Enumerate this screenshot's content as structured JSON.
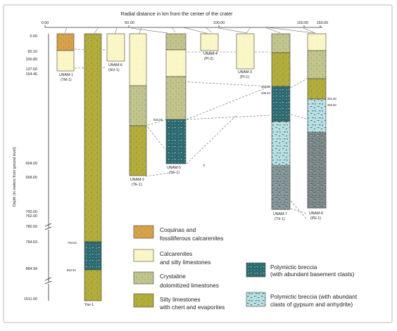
{
  "title": "Radial distance in km from the center of the crater",
  "y_axis_label": "Depth (in meters from ground level)",
  "x_ticks": [
    "0.00",
    "50.00",
    "100.00",
    "150.00",
    "160.00"
  ],
  "depth_ticks": [
    "0.00",
    "60.10",
    "100.80",
    "137.60",
    "154.45",
    "604.00",
    "658.00",
    "700.00",
    "762.00",
    "780.00",
    "794.63",
    "884.94",
    "1511.00"
  ],
  "inline_depths": {
    "yax_top_breccia": "794.63",
    "yax_base_breccia": "884.94",
    "se1_top_breccia": "503.06",
    "yx_top_breccia": "332.00",
    "yx_breccia_marker": "348.40",
    "ps_gypsum": "381.60",
    "ps_breccia": "392.60",
    "question": "?"
  },
  "well_names": {
    "tm1": [
      "UNAM-1",
      "(TM-1)"
    ],
    "hu1": [
      "UNAM-6",
      "(HU-1)"
    ],
    "tk1_top": [
      "UNAM-4",
      "(PI-2)"
    ],
    "pi1": [
      "UNAM-3",
      "(PI-1)"
    ],
    "te1": [
      "UNAM-2",
      "(TE-1)"
    ],
    "se1": [
      "UNAM-5",
      "(SE-1)"
    ],
    "yx1": [
      "UNAM-7",
      "(TX-1)"
    ],
    "ps1": [
      "UNAM-8",
      "(PE-1)"
    ],
    "yax1": "Yax-1"
  },
  "legend": {
    "coquinas": [
      "Coquinas and",
      "fossiliferous calcarenites"
    ],
    "calcarenites": [
      "Calcarenites",
      "and silty limestones"
    ],
    "crystalline": [
      "Crystaline",
      "dolomitized limestones"
    ],
    "silty": [
      "Silty limestones",
      "with chert and evaporites"
    ],
    "breccia_basement": [
      "Polymictic breccia",
      "(with abundant basement clasts)"
    ],
    "breccia_gypsum": [
      "Polymictic breccia (with abundant",
      "clasts of gypsum and anhydrite)"
    ]
  },
  "colors": {
    "coquinas": "#d6a24a",
    "calcarenites": "#fbf6c5",
    "crystalline": "#c2c58d",
    "silty": "#b3ad3d",
    "breccia_basement": "#2d6a70",
    "breccia_gypsum": "#b8dfe2"
  }
}
